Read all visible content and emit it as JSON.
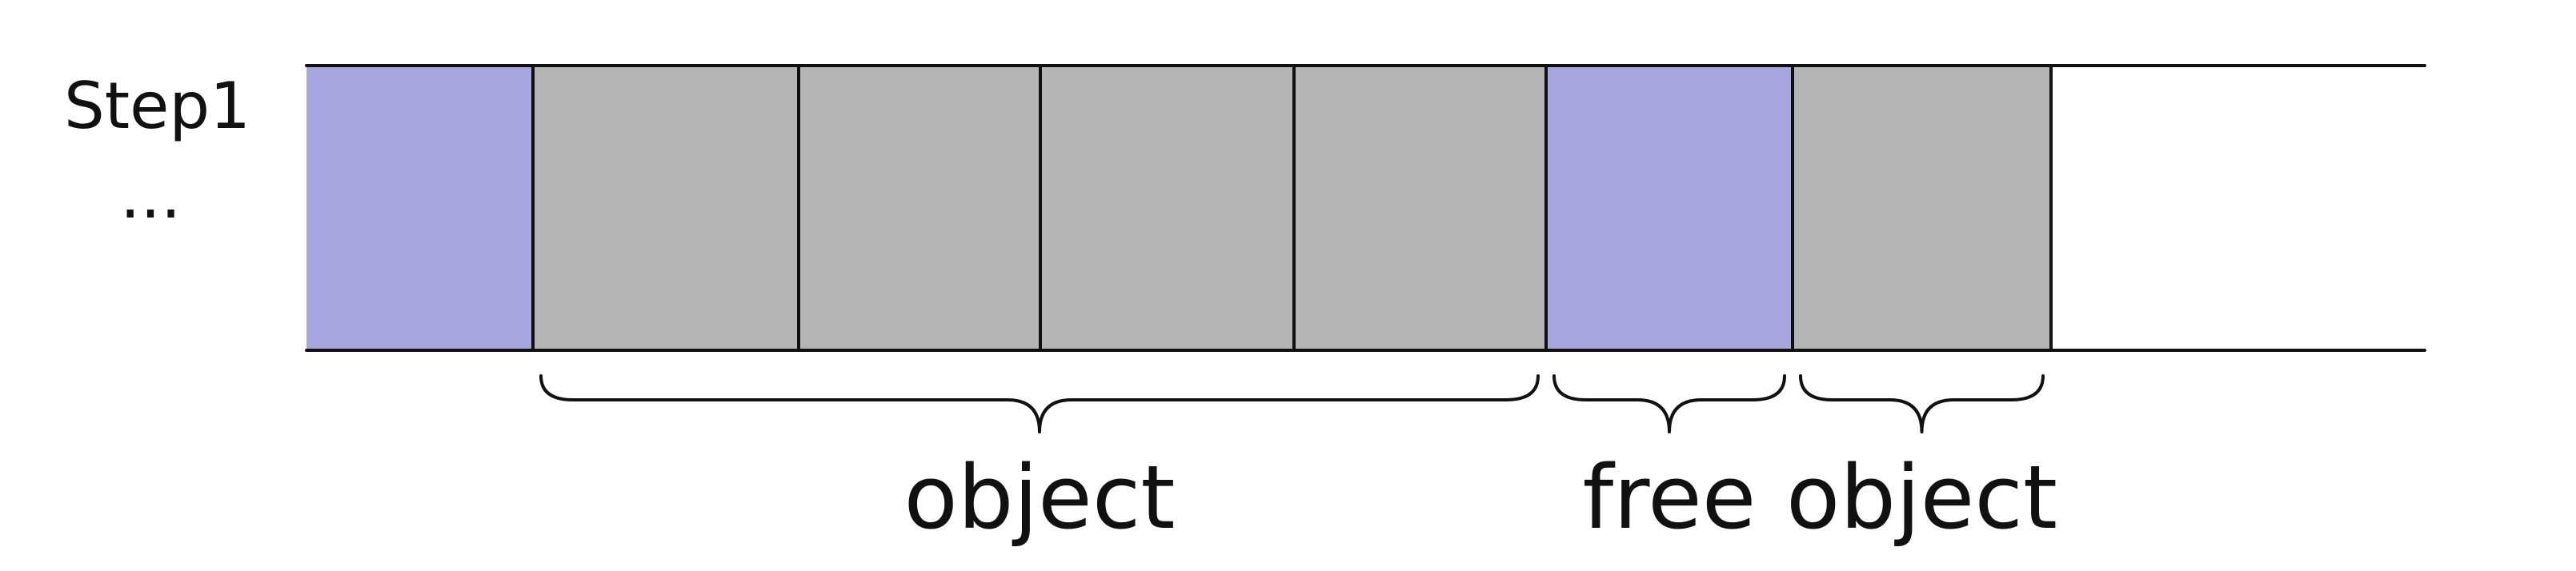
{
  "labels": {
    "step": "Step1",
    "ellipsis": "..."
  },
  "colors": {
    "free": "#a7a6de",
    "object": "#b5b5b5",
    "empty": "#ffffff",
    "line": "#111111"
  },
  "memory": {
    "cells": [
      {
        "kind": "free"
      },
      {
        "kind": "object"
      },
      {
        "kind": "object"
      },
      {
        "kind": "object"
      },
      {
        "kind": "object"
      },
      {
        "kind": "free"
      },
      {
        "kind": "object"
      },
      {
        "kind": "empty"
      }
    ]
  },
  "braces": [
    {
      "label": "object",
      "first_cell": 1,
      "last_cell": 4
    },
    {
      "label": "free",
      "first_cell": 5,
      "last_cell": 5
    },
    {
      "label": "object",
      "first_cell": 6,
      "last_cell": 6
    }
  ]
}
